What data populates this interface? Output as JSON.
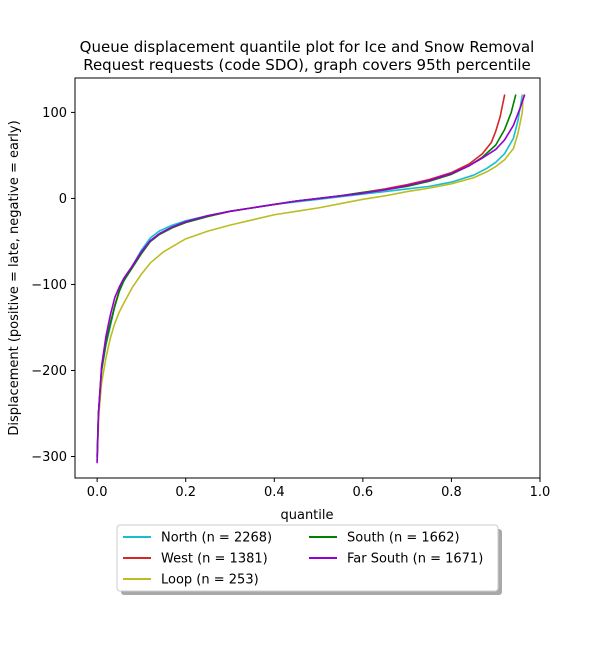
{
  "chart_data": {
    "type": "line",
    "title_lines": [
      "Queue displacement quantile plot for Ice and Snow Removal",
      "Request  requests (code SDO), graph covers 95th percentile"
    ],
    "xlabel": "quantile",
    "ylabel": "Displacement (positive = late, negative = early)",
    "xlim": [
      -0.05,
      1.0
    ],
    "ylim": [
      -325,
      140
    ],
    "xticks": [
      0.0,
      0.2,
      0.4,
      0.6,
      0.8,
      1.0
    ],
    "xtick_labels": [
      "0.0",
      "0.2",
      "0.4",
      "0.6",
      "0.8",
      "1.0"
    ],
    "yticks": [
      -300,
      -200,
      -100,
      0,
      100
    ],
    "ytick_labels": [
      "−300",
      "−200",
      "−100",
      "0",
      "100"
    ],
    "grid": false,
    "legend": {
      "placement": "below-center",
      "columns": 2
    },
    "series": [
      {
        "name": "North (n = 2268)",
        "color": "#17becf",
        "points": [
          [
            0.0,
            -300
          ],
          [
            0.003,
            -250
          ],
          [
            0.01,
            -200
          ],
          [
            0.02,
            -170
          ],
          [
            0.03,
            -148
          ],
          [
            0.04,
            -125
          ],
          [
            0.05,
            -108
          ],
          [
            0.06,
            -96
          ],
          [
            0.08,
            -78
          ],
          [
            0.1,
            -60
          ],
          [
            0.12,
            -46
          ],
          [
            0.14,
            -38
          ],
          [
            0.17,
            -31
          ],
          [
            0.2,
            -26
          ],
          [
            0.25,
            -20
          ],
          [
            0.3,
            -15
          ],
          [
            0.35,
            -11
          ],
          [
            0.4,
            -7
          ],
          [
            0.45,
            -4
          ],
          [
            0.5,
            -1
          ],
          [
            0.55,
            2
          ],
          [
            0.6,
            5
          ],
          [
            0.65,
            8
          ],
          [
            0.7,
            11
          ],
          [
            0.75,
            14
          ],
          [
            0.8,
            19
          ],
          [
            0.85,
            27
          ],
          [
            0.88,
            35
          ],
          [
            0.9,
            42
          ],
          [
            0.92,
            52
          ],
          [
            0.94,
            70
          ],
          [
            0.95,
            90
          ],
          [
            0.96,
            120
          ]
        ]
      },
      {
        "name": "West (n = 1381)",
        "color": "#d62728",
        "points": [
          [
            0.0,
            -305
          ],
          [
            0.003,
            -250
          ],
          [
            0.01,
            -198
          ],
          [
            0.02,
            -168
          ],
          [
            0.03,
            -145
          ],
          [
            0.04,
            -124
          ],
          [
            0.05,
            -107
          ],
          [
            0.06,
            -95
          ],
          [
            0.08,
            -80
          ],
          [
            0.1,
            -64
          ],
          [
            0.12,
            -50
          ],
          [
            0.14,
            -42
          ],
          [
            0.17,
            -34
          ],
          [
            0.2,
            -28
          ],
          [
            0.25,
            -21
          ],
          [
            0.3,
            -15
          ],
          [
            0.35,
            -11
          ],
          [
            0.4,
            -7
          ],
          [
            0.45,
            -3
          ],
          [
            0.5,
            0
          ],
          [
            0.55,
            3
          ],
          [
            0.6,
            7
          ],
          [
            0.65,
            11
          ],
          [
            0.7,
            16
          ],
          [
            0.75,
            22
          ],
          [
            0.8,
            30
          ],
          [
            0.84,
            40
          ],
          [
            0.87,
            52
          ],
          [
            0.89,
            65
          ],
          [
            0.9,
            78
          ],
          [
            0.91,
            95
          ],
          [
            0.92,
            120
          ]
        ]
      },
      {
        "name": "Loop (n = 253)",
        "color": "#bcbd22",
        "points": [
          [
            0.0,
            -300
          ],
          [
            0.004,
            -250
          ],
          [
            0.01,
            -215
          ],
          [
            0.02,
            -185
          ],
          [
            0.03,
            -162
          ],
          [
            0.04,
            -145
          ],
          [
            0.05,
            -132
          ],
          [
            0.06,
            -122
          ],
          [
            0.08,
            -103
          ],
          [
            0.1,
            -88
          ],
          [
            0.12,
            -75
          ],
          [
            0.15,
            -62
          ],
          [
            0.2,
            -47
          ],
          [
            0.25,
            -38
          ],
          [
            0.3,
            -31
          ],
          [
            0.35,
            -25
          ],
          [
            0.4,
            -19
          ],
          [
            0.45,
            -15
          ],
          [
            0.5,
            -11
          ],
          [
            0.55,
            -6
          ],
          [
            0.6,
            -1
          ],
          [
            0.65,
            3
          ],
          [
            0.7,
            8
          ],
          [
            0.75,
            12
          ],
          [
            0.8,
            17
          ],
          [
            0.85,
            24
          ],
          [
            0.88,
            31
          ],
          [
            0.9,
            37
          ],
          [
            0.92,
            45
          ],
          [
            0.94,
            58
          ],
          [
            0.95,
            75
          ],
          [
            0.96,
            100
          ],
          [
            0.962,
            120
          ]
        ]
      },
      {
        "name": "South (n = 1662)",
        "color": "#008000",
        "points": [
          [
            0.0,
            -300
          ],
          [
            0.003,
            -250
          ],
          [
            0.01,
            -200
          ],
          [
            0.02,
            -168
          ],
          [
            0.03,
            -145
          ],
          [
            0.04,
            -125
          ],
          [
            0.05,
            -108
          ],
          [
            0.06,
            -96
          ],
          [
            0.08,
            -80
          ],
          [
            0.1,
            -64
          ],
          [
            0.12,
            -50
          ],
          [
            0.14,
            -42
          ],
          [
            0.17,
            -34
          ],
          [
            0.2,
            -28
          ],
          [
            0.25,
            -21
          ],
          [
            0.3,
            -15
          ],
          [
            0.35,
            -11
          ],
          [
            0.4,
            -7
          ],
          [
            0.45,
            -3
          ],
          [
            0.5,
            0
          ],
          [
            0.55,
            3
          ],
          [
            0.6,
            7
          ],
          [
            0.65,
            10
          ],
          [
            0.7,
            14
          ],
          [
            0.75,
            20
          ],
          [
            0.8,
            28
          ],
          [
            0.84,
            38
          ],
          [
            0.87,
            48
          ],
          [
            0.9,
            62
          ],
          [
            0.92,
            80
          ],
          [
            0.935,
            100
          ],
          [
            0.945,
            120
          ]
        ]
      },
      {
        "name": "Far South (n = 1671)",
        "color": "#9400d3",
        "points": [
          [
            0.0,
            -307
          ],
          [
            0.003,
            -250
          ],
          [
            0.01,
            -195
          ],
          [
            0.02,
            -160
          ],
          [
            0.03,
            -135
          ],
          [
            0.04,
            -115
          ],
          [
            0.05,
            -103
          ],
          [
            0.06,
            -93
          ],
          [
            0.08,
            -78
          ],
          [
            0.1,
            -62
          ],
          [
            0.12,
            -49
          ],
          [
            0.14,
            -41
          ],
          [
            0.17,
            -33
          ],
          [
            0.2,
            -27
          ],
          [
            0.25,
            -20
          ],
          [
            0.3,
            -15
          ],
          [
            0.35,
            -11
          ],
          [
            0.4,
            -7
          ],
          [
            0.45,
            -3
          ],
          [
            0.5,
            0
          ],
          [
            0.55,
            3
          ],
          [
            0.6,
            6
          ],
          [
            0.65,
            10
          ],
          [
            0.7,
            15
          ],
          [
            0.75,
            21
          ],
          [
            0.8,
            29
          ],
          [
            0.84,
            38
          ],
          [
            0.87,
            47
          ],
          [
            0.9,
            57
          ],
          [
            0.92,
            68
          ],
          [
            0.94,
            85
          ],
          [
            0.955,
            105
          ],
          [
            0.965,
            120
          ]
        ]
      }
    ]
  }
}
